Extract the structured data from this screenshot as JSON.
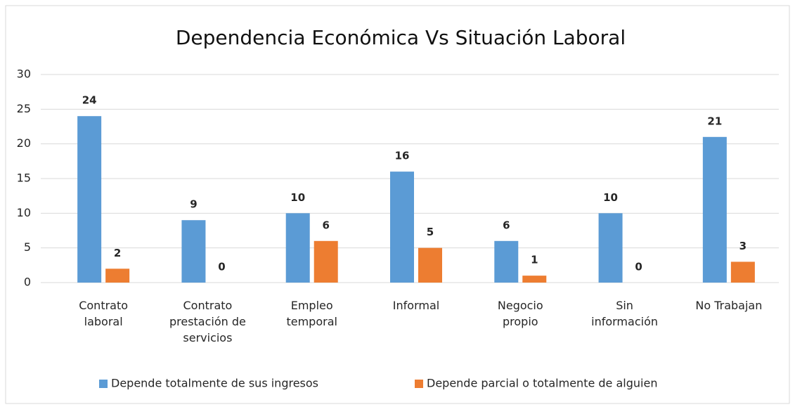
{
  "chart_data": {
    "type": "bar",
    "title": "Dependencia Económica Vs Situación Laboral",
    "categories": [
      [
        "Contrato",
        "laboral"
      ],
      [
        "Contrato",
        "prestación de",
        "servicios"
      ],
      [
        "Empleo",
        "temporal"
      ],
      [
        "Informal"
      ],
      [
        "Negocio",
        "propio"
      ],
      [
        "Sin",
        "información"
      ],
      [
        "No Trabajan"
      ]
    ],
    "series": [
      {
        "name": "Depende totalmente de sus ingresos",
        "color": "#5b9bd5",
        "values": [
          24,
          9,
          10,
          16,
          6,
          10,
          21
        ]
      },
      {
        "name": "Depende parcial o totalmente de alguien",
        "color": "#ed7d31",
        "values": [
          2,
          0,
          6,
          5,
          1,
          0,
          3
        ]
      }
    ],
    "ylim": [
      0,
      30
    ],
    "yticks": [
      0,
      5,
      10,
      15,
      20,
      25,
      30
    ],
    "grid": true,
    "legend": "bottom"
  }
}
